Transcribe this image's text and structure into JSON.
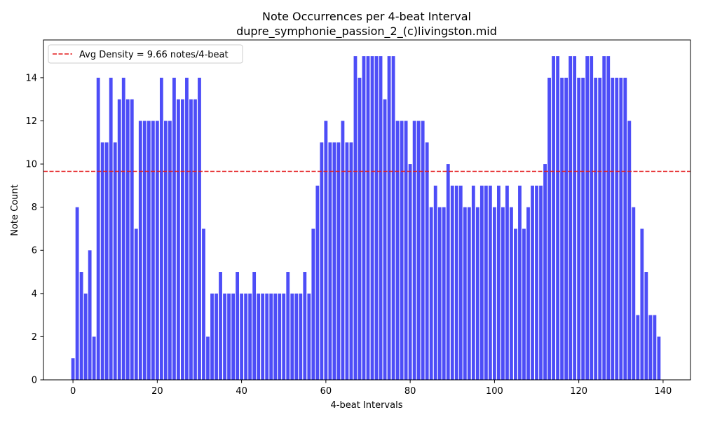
{
  "chart_data": {
    "type": "bar",
    "title": "Note Occurrences per 4-beat Interval",
    "subtitle": "dupre_symphonie_passion_2_(c)livingston.mid",
    "xlabel": "4-beat Intervals",
    "ylabel": "Note Count",
    "xlim": [
      -7,
      146.5
    ],
    "ylim": [
      0,
      15.75
    ],
    "xticks": [
      0,
      20,
      40,
      60,
      80,
      100,
      120,
      140
    ],
    "yticks": [
      0,
      2,
      4,
      6,
      8,
      10,
      12,
      14
    ],
    "bar_color": "#4d4df7",
    "avg_line_color": "#e41a1c",
    "average_line": {
      "value": 9.66,
      "label": "Avg Density = 9.66 notes/4-beat",
      "style": "dashed"
    },
    "legend": {
      "position": "top-left",
      "entries": [
        "Avg Density = 9.66 notes/4-beat"
      ]
    },
    "grid": false,
    "x": [
      0,
      1,
      2,
      3,
      4,
      5,
      6,
      7,
      8,
      9,
      10,
      11,
      12,
      13,
      14,
      15,
      16,
      17,
      18,
      19,
      20,
      21,
      22,
      23,
      24,
      25,
      26,
      27,
      28,
      29,
      30,
      31,
      32,
      33,
      34,
      35,
      36,
      37,
      38,
      39,
      40,
      41,
      42,
      43,
      44,
      45,
      46,
      47,
      48,
      49,
      50,
      51,
      52,
      53,
      54,
      55,
      56,
      57,
      58,
      59,
      60,
      61,
      62,
      63,
      64,
      65,
      66,
      67,
      68,
      69,
      70,
      71,
      72,
      73,
      74,
      75,
      76,
      77,
      78,
      79,
      80,
      81,
      82,
      83,
      84,
      85,
      86,
      87,
      88,
      89,
      90,
      91,
      92,
      93,
      94,
      95,
      96,
      97,
      98,
      99,
      100,
      101,
      102,
      103,
      104,
      105,
      106,
      107,
      108,
      109,
      110,
      111,
      112,
      113,
      114,
      115,
      116,
      117,
      118,
      119,
      120,
      121,
      122,
      123,
      124,
      125,
      126,
      127,
      128,
      129,
      130,
      131,
      132,
      133,
      134,
      135,
      136,
      137,
      138,
      139
    ],
    "values": [
      1,
      8,
      5,
      4,
      6,
      2,
      14,
      11,
      11,
      14,
      11,
      13,
      14,
      13,
      13,
      7,
      12,
      12,
      12,
      12,
      12,
      14,
      12,
      12,
      14,
      13,
      13,
      14,
      13,
      13,
      14,
      7,
      2,
      4,
      4,
      5,
      4,
      4,
      4,
      5,
      4,
      4,
      4,
      5,
      4,
      4,
      4,
      4,
      4,
      4,
      4,
      5,
      4,
      4,
      4,
      5,
      4,
      7,
      9,
      11,
      12,
      11,
      11,
      11,
      12,
      11,
      11,
      15,
      14,
      15,
      15,
      15,
      15,
      15,
      13,
      15,
      15,
      12,
      12,
      12,
      10,
      12,
      12,
      12,
      11,
      8,
      9,
      8,
      8,
      10,
      9,
      9,
      9,
      8,
      8,
      9,
      8,
      9,
      9,
      9,
      8,
      9,
      8,
      9,
      8,
      7,
      9,
      7,
      8,
      9,
      9,
      9,
      10,
      14,
      15,
      15,
      14,
      14,
      15,
      15,
      14,
      14,
      15,
      15,
      14,
      14,
      15,
      15,
      14,
      14,
      14,
      14,
      12,
      8,
      3,
      7,
      5,
      3,
      3,
      2
    ]
  }
}
